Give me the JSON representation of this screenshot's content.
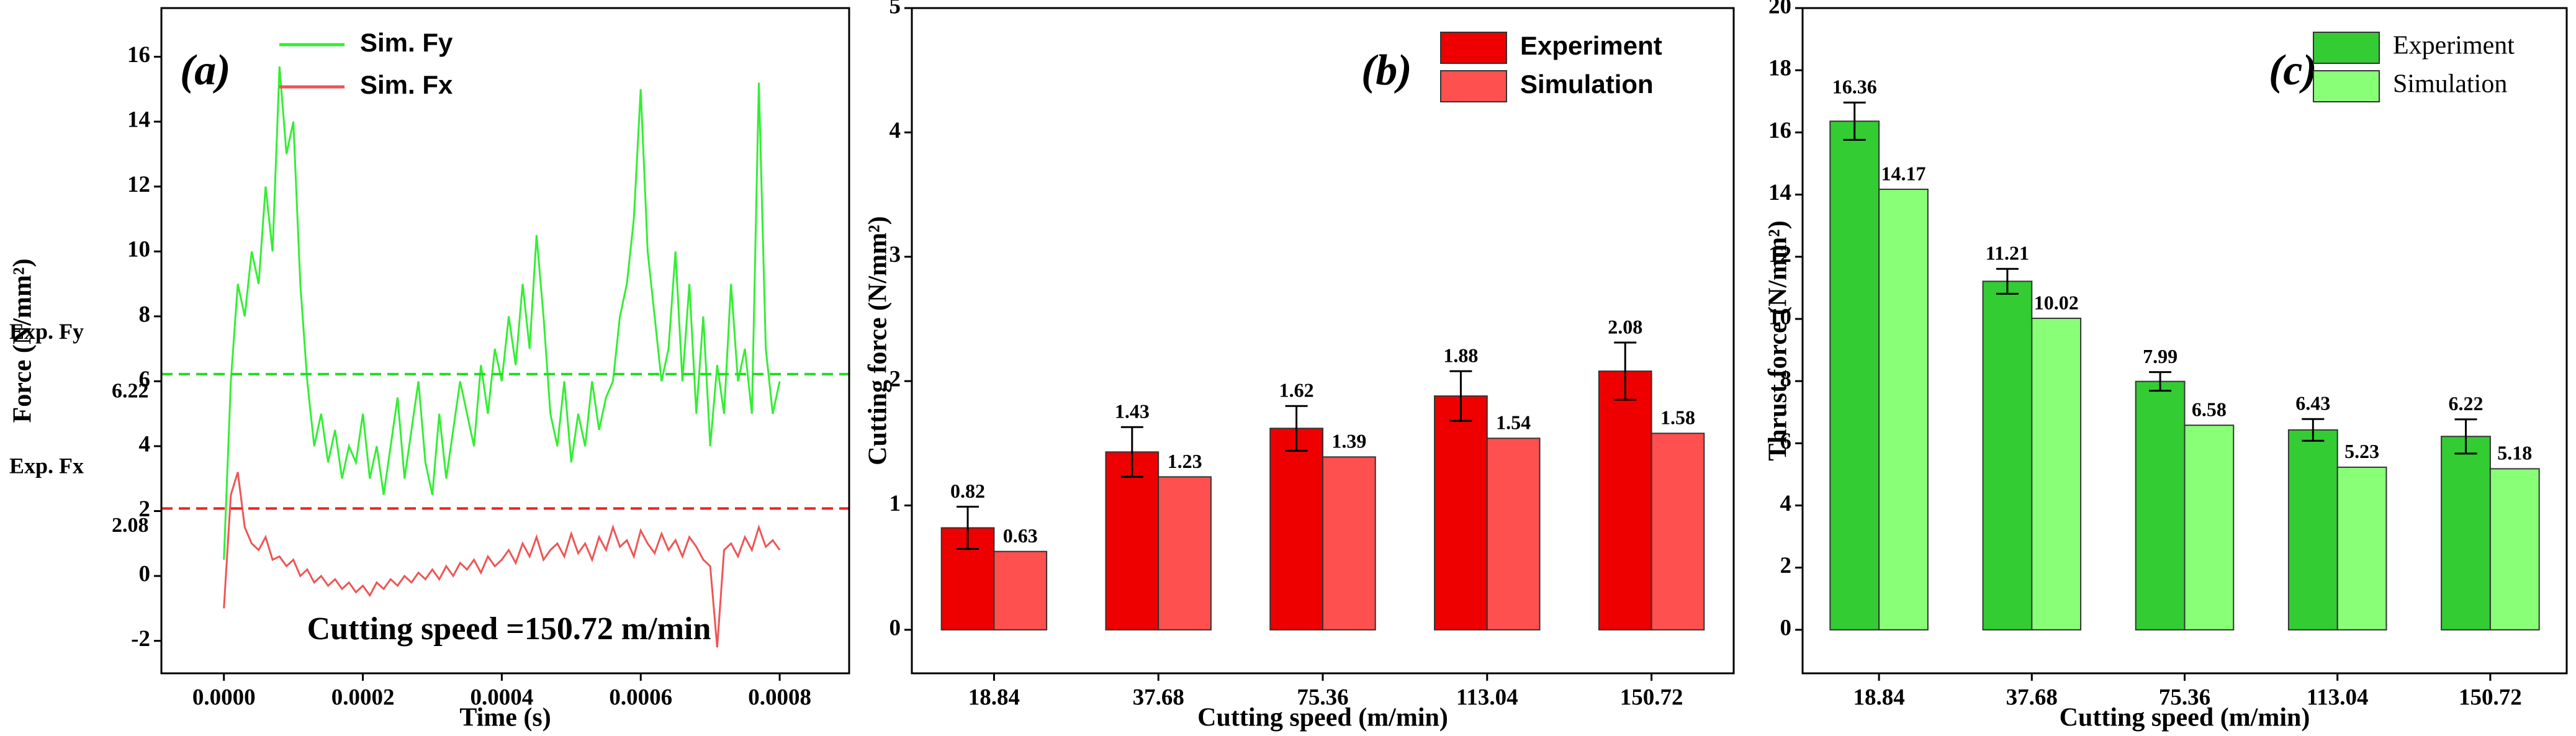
{
  "chart_data": [
    {
      "type": "line",
      "panel_label": "(a)",
      "annotation": "Cutting speed =150.72 m/min",
      "xlabel": "Time (s)",
      "ylabel": "Force (N/mm²)",
      "x": [
        0,
        1e-05,
        2e-05,
        3e-05,
        4e-05,
        5e-05,
        6e-05,
        7e-05,
        8e-05,
        9e-05,
        0.0001,
        0.00011,
        0.00012,
        0.00013,
        0.00014,
        0.00015,
        0.00016,
        0.00017,
        0.00018,
        0.00019,
        0.0002,
        0.00021,
        0.00022,
        0.00023,
        0.00024,
        0.00025,
        0.00026,
        0.00027,
        0.00028,
        0.00029,
        0.0003,
        0.00031,
        0.00032,
        0.00033,
        0.00034,
        0.00035,
        0.00036,
        0.00037,
        0.00038,
        0.00039,
        0.0004,
        0.00041,
        0.00042,
        0.00043,
        0.00044,
        0.00045,
        0.00046,
        0.00047,
        0.00048,
        0.00049,
        0.0005,
        0.00051,
        0.00052,
        0.00053,
        0.00054,
        0.00055,
        0.00056,
        0.00057,
        0.00058,
        0.00059,
        0.0006,
        0.00061,
        0.00062,
        0.00063,
        0.00064,
        0.00065,
        0.00066,
        0.00067,
        0.00068,
        0.00069,
        0.0007,
        0.00071,
        0.00072,
        0.00073,
        0.00074,
        0.00075,
        0.00076,
        0.00077,
        0.00078,
        0.00079,
        0.0008
      ],
      "series": [
        {
          "name": "Sim. Fy",
          "color": "#33ee33",
          "values": [
            0.5,
            6,
            9,
            8,
            10,
            9,
            12,
            10,
            15.7,
            13,
            14,
            9,
            6,
            4,
            5,
            3.5,
            4.5,
            3,
            4,
            3.5,
            5,
            3,
            4,
            2.5,
            4,
            5.5,
            3,
            4.5,
            6,
            3.5,
            2.5,
            5,
            3,
            4.5,
            6,
            5,
            4,
            6.5,
            5,
            7,
            6,
            8,
            6.5,
            9,
            7,
            10.5,
            8,
            5,
            4,
            6,
            3.5,
            5,
            4,
            6,
            4.5,
            5.5,
            6,
            8,
            9,
            11,
            15,
            10,
            8,
            6,
            7,
            10,
            6,
            9,
            5,
            8,
            4,
            6.5,
            5,
            9,
            6,
            7,
            5,
            15.2,
            7,
            5,
            6
          ]
        },
        {
          "name": "Sim. Fx",
          "color": "#ee5555",
          "values": [
            -1,
            2.5,
            3.2,
            1.5,
            1,
            0.8,
            1.2,
            0.5,
            0.6,
            0.3,
            0.5,
            0,
            0.2,
            -0.2,
            0,
            -0.3,
            -0.1,
            -0.4,
            -0.2,
            -0.5,
            -0.3,
            -0.6,
            -0.2,
            -0.4,
            -0.1,
            -0.3,
            0,
            -0.2,
            0.1,
            -0.1,
            0.2,
            -0.1,
            0.3,
            0,
            0.4,
            0.2,
            0.5,
            0.1,
            0.6,
            0.3,
            0.5,
            0.8,
            0.4,
            1,
            0.6,
            1.2,
            0.5,
            0.8,
            1,
            0.6,
            1.3,
            0.7,
            1,
            0.5,
            1.2,
            0.8,
            1.5,
            0.9,
            1.1,
            0.6,
            1.4,
            1,
            0.7,
            1.3,
            0.8,
            1.1,
            0.6,
            1.2,
            0.9,
            0.5,
            0.3,
            -2.2,
            0.8,
            1,
            0.6,
            1.2,
            0.8,
            1.5,
            0.9,
            1.1,
            0.8
          ]
        }
      ],
      "reference_lines": [
        {
          "label": "Exp. Fy",
          "value": 6.22,
          "color": "#22dd22"
        },
        {
          "label": "Exp. Fx",
          "value": 2.08,
          "color": "#ee2222"
        }
      ],
      "xlim": [
        -9e-05,
        0.0009
      ],
      "xticks": [
        {
          "value": 0,
          "label": "0.0000"
        },
        {
          "value": 0.0002,
          "label": "0.0002"
        },
        {
          "value": 0.0004,
          "label": "0.0004"
        },
        {
          "value": 0.0006,
          "label": "0.0006"
        },
        {
          "value": 0.0008,
          "label": "0.0008"
        }
      ],
      "ylim": [
        -3,
        17.5
      ],
      "yticks": [
        -2,
        0,
        2,
        4,
        6,
        8,
        10,
        12,
        14,
        16
      ],
      "legend": "upper left"
    },
    {
      "type": "bar",
      "panel_label": "(b)",
      "xlabel": "Cutting speed (m/min)",
      "ylabel": "Cutting force (N/mm²)",
      "categories": [
        "18.84",
        "37.68",
        "75.36",
        "113.04",
        "150.72"
      ],
      "series": [
        {
          "name": "Experiment",
          "color": "#ee0000",
          "values": [
            0.82,
            1.43,
            1.62,
            1.88,
            2.08
          ],
          "errors": [
            0.17,
            0.2,
            0.18,
            0.2,
            0.23
          ]
        },
        {
          "name": "Simulation",
          "color": "#ff5050",
          "values": [
            0.63,
            1.23,
            1.39,
            1.54,
            1.58
          ]
        }
      ],
      "ylim": [
        -0.35,
        5
      ],
      "yticks": [
        0,
        1,
        2,
        3,
        4,
        5
      ],
      "legend": "upper right",
      "legend_font": "sans"
    },
    {
      "type": "bar",
      "panel_label": "(c)",
      "xlabel": "Cutting speed (m/min)",
      "ylabel": "Thrust force (N/mm²)",
      "categories": [
        "18.84",
        "37.68",
        "75.36",
        "113.04",
        "150.72"
      ],
      "series": [
        {
          "name": "Experiment",
          "color": "#33cc33",
          "values": [
            16.36,
            11.21,
            7.99,
            6.43,
            6.22
          ],
          "errors": [
            0.6,
            0.4,
            0.3,
            0.35,
            0.55
          ]
        },
        {
          "name": "Simulation",
          "color": "#88ff77",
          "values": [
            14.17,
            10.02,
            6.58,
            5.23,
            5.18
          ]
        }
      ],
      "ylim": [
        -1.4,
        20
      ],
      "yticks": [
        0,
        2,
        4,
        6,
        8,
        10,
        12,
        14,
        16,
        18,
        20
      ],
      "legend": "upper right",
      "legend_font": "serif"
    }
  ]
}
